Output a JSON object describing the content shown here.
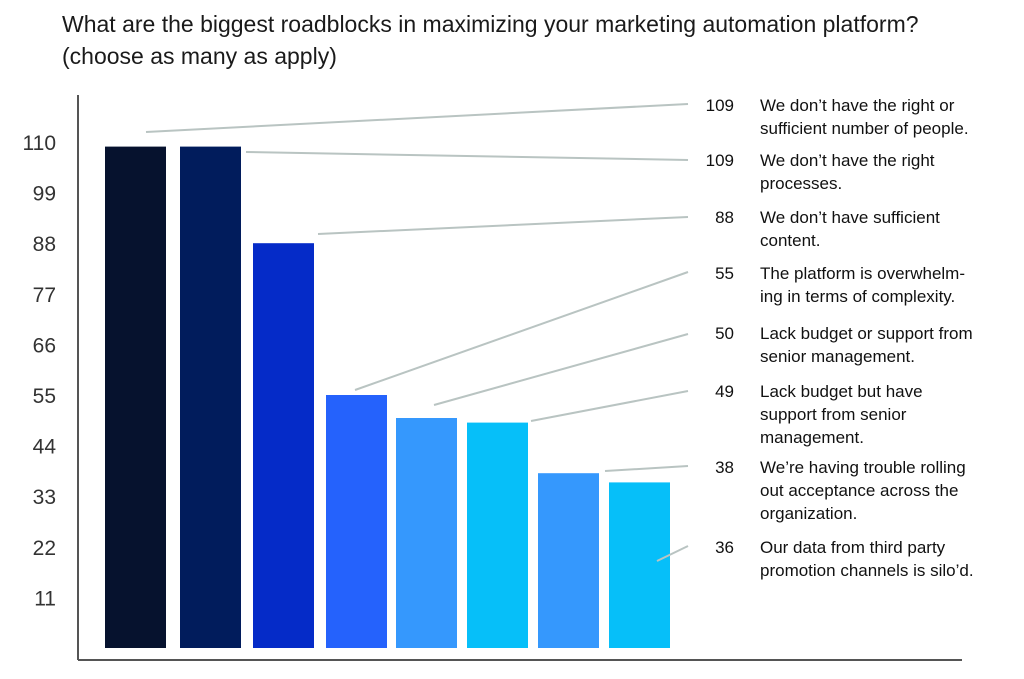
{
  "chart_data": {
    "type": "bar",
    "title_lines": [
      "What are the biggest roadblocks in maximizing your marketing automation platform?",
      "(choose as many as apply)"
    ],
    "xlabel": "",
    "ylabel": "",
    "ylim": [
      0,
      121
    ],
    "yticks": [
      11,
      22,
      33,
      44,
      55,
      66,
      77,
      88,
      99,
      110
    ],
    "grid": false,
    "categories": [
      "We don’t have the right or sufficient number of people.",
      "We don’t have the right processes.",
      "We don’t have sufficient content.",
      "The platform is overwhelming in terms of complexity.",
      "Lack budget or support from senior management.",
      "Lack budget but have support from senior management.",
      "We’re having trouble rolling out acceptance across the organization.",
      "Our data from third party promotion channels is silo’d."
    ],
    "label_lines": [
      [
        "We don’t have the right or",
        "sufficient number of people."
      ],
      [
        "We don’t have the right",
        "processes."
      ],
      [
        "We don’t have sufficient",
        "content."
      ],
      [
        "The platform is overwhelm-",
        "ing in terms of complexity."
      ],
      [
        "Lack budget or support from",
        "senior management."
      ],
      [
        "Lack budget but have",
        "support from senior",
        "management."
      ],
      [
        "We’re having trouble rolling",
        "out acceptance across the",
        "organization."
      ],
      [
        "Our data from third party",
        "promotion channels is silo’d."
      ]
    ],
    "values": [
      109,
      109,
      88,
      55,
      50,
      49,
      38,
      36
    ],
    "bar_colors": [
      "#06122e",
      "#011c5c",
      "#052bc8",
      "#2562fc",
      "#3598fd",
      "#06bff9",
      "#3598fd",
      "#06bff9"
    ]
  }
}
